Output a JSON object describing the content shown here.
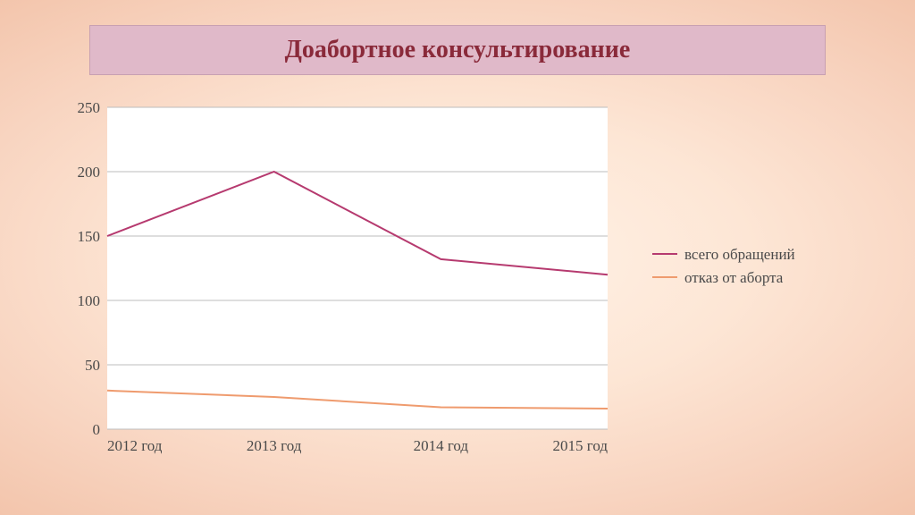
{
  "title": "Доабортное консультирование",
  "title_color": "#8a2a3a",
  "title_bg": "#e0b9c9",
  "title_border": "#c8a0b2",
  "title_fontsize": 28,
  "chart": {
    "type": "line",
    "categories": [
      "2012 год",
      "2013 год",
      "2014 год",
      "2015 год"
    ],
    "series": [
      {
        "name": "всего обращений",
        "color": "#b63a6f",
        "values": [
          150,
          200,
          132,
          120
        ],
        "line_width": 2
      },
      {
        "name": "отказ от аборта",
        "color": "#ef9b6e",
        "values": [
          30,
          25,
          17,
          16
        ],
        "line_width": 2
      }
    ],
    "ylim": [
      0,
      250
    ],
    "ytick_step": 50,
    "yticks": [
      0,
      50,
      100,
      150,
      200,
      250
    ],
    "plot_bg": "#ffffff",
    "grid_color": "#bdbdbd",
    "tick_fontsize": 17,
    "tick_color": "#4a4a4a",
    "legend_fontsize": 17,
    "legend_line_length": 28
  }
}
